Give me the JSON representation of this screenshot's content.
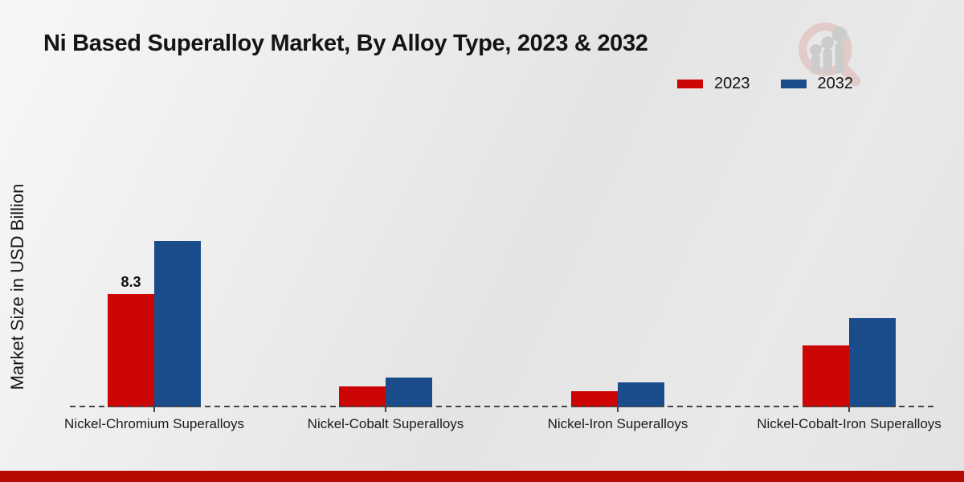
{
  "title": "Ni Based Superalloy Market, By Alloy Type, 2023 & 2032",
  "ylabel": "Market Size in USD Billion",
  "colors": {
    "series_2023": "#cc0505",
    "series_2032": "#1a4c8b",
    "footer_band": "#b80a00",
    "baseline": "#454545"
  },
  "logo": {
    "name": "magnifier-bar-chart-logo"
  },
  "chart_data": {
    "type": "bar",
    "title": "Ni Based Superalloy Market, By Alloy Type, 2023 & 2032",
    "xlabel": "",
    "ylabel": "Market Size in USD Billion",
    "categories": [
      "Nickel-Chromium Superalloys",
      "Nickel-Cobalt Superalloys",
      "Nickel-Iron Superalloys",
      "Nickel-Cobalt-Iron Superalloys"
    ],
    "series": [
      {
        "name": "2023",
        "color": "#cc0505",
        "values": [
          8.3,
          1.5,
          1.2,
          4.5
        ]
      },
      {
        "name": "2032",
        "color": "#1a4c8b",
        "values": [
          12.2,
          2.2,
          1.8,
          6.5
        ]
      }
    ],
    "annotations": [
      {
        "series_index": 0,
        "category_index": 0,
        "text": "8.3"
      }
    ],
    "ylim": [
      0,
      14
    ],
    "grid": false,
    "axis_style": "dashed-baseline-only",
    "legend_position": "top-right"
  }
}
